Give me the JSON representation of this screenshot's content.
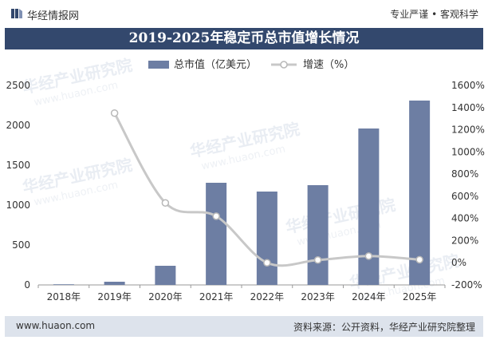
{
  "header": {
    "brand": "华经情报网",
    "slogan": "专业严谨 • 客观科学"
  },
  "title": "2019-2025年稳定币总市值增长情况",
  "footer": {
    "website": "www.huaon.com",
    "source": "资料来源：公开资料，华经产业研究院整理"
  },
  "watermark": {
    "name": "华经产业研究院",
    "url": "www.huaon.com"
  },
  "colors": {
    "bar": "#6d7ea3",
    "line": "#c8c8c8",
    "title_bg": "#33486d",
    "footer_bg": "#dde3ec"
  },
  "chart_data": {
    "type": "bar",
    "categories": [
      "2018年",
      "2019年",
      "2020年",
      "2021年",
      "2022年",
      "2023年",
      "2024年",
      "2025年"
    ],
    "series": [
      {
        "name": "总市值（亿美元）",
        "type": "bar",
        "axis": "left",
        "values": [
          8,
          40,
          240,
          1280,
          1170,
          1250,
          1960,
          2310
        ]
      },
      {
        "name": "增速（%）",
        "type": "line",
        "axis": "right",
        "values": [
          null,
          1350,
          540,
          420,
          0,
          25,
          60,
          28
        ]
      }
    ],
    "y_left": {
      "min": 0,
      "max": 2500,
      "ticks": [
        0,
        500,
        1000,
        1500,
        2000,
        2500
      ]
    },
    "y_right": {
      "min": -200,
      "max": 1600,
      "ticks": [
        -200,
        0,
        200,
        400,
        600,
        800,
        1000,
        1200,
        1400,
        1600
      ],
      "tick_labels": [
        "-200%",
        "0%",
        "200%",
        "400%",
        "600%",
        "800%",
        "1000%",
        "1200%",
        "1400%",
        "1600%"
      ]
    },
    "legend_position": "top-center",
    "grid": false
  }
}
